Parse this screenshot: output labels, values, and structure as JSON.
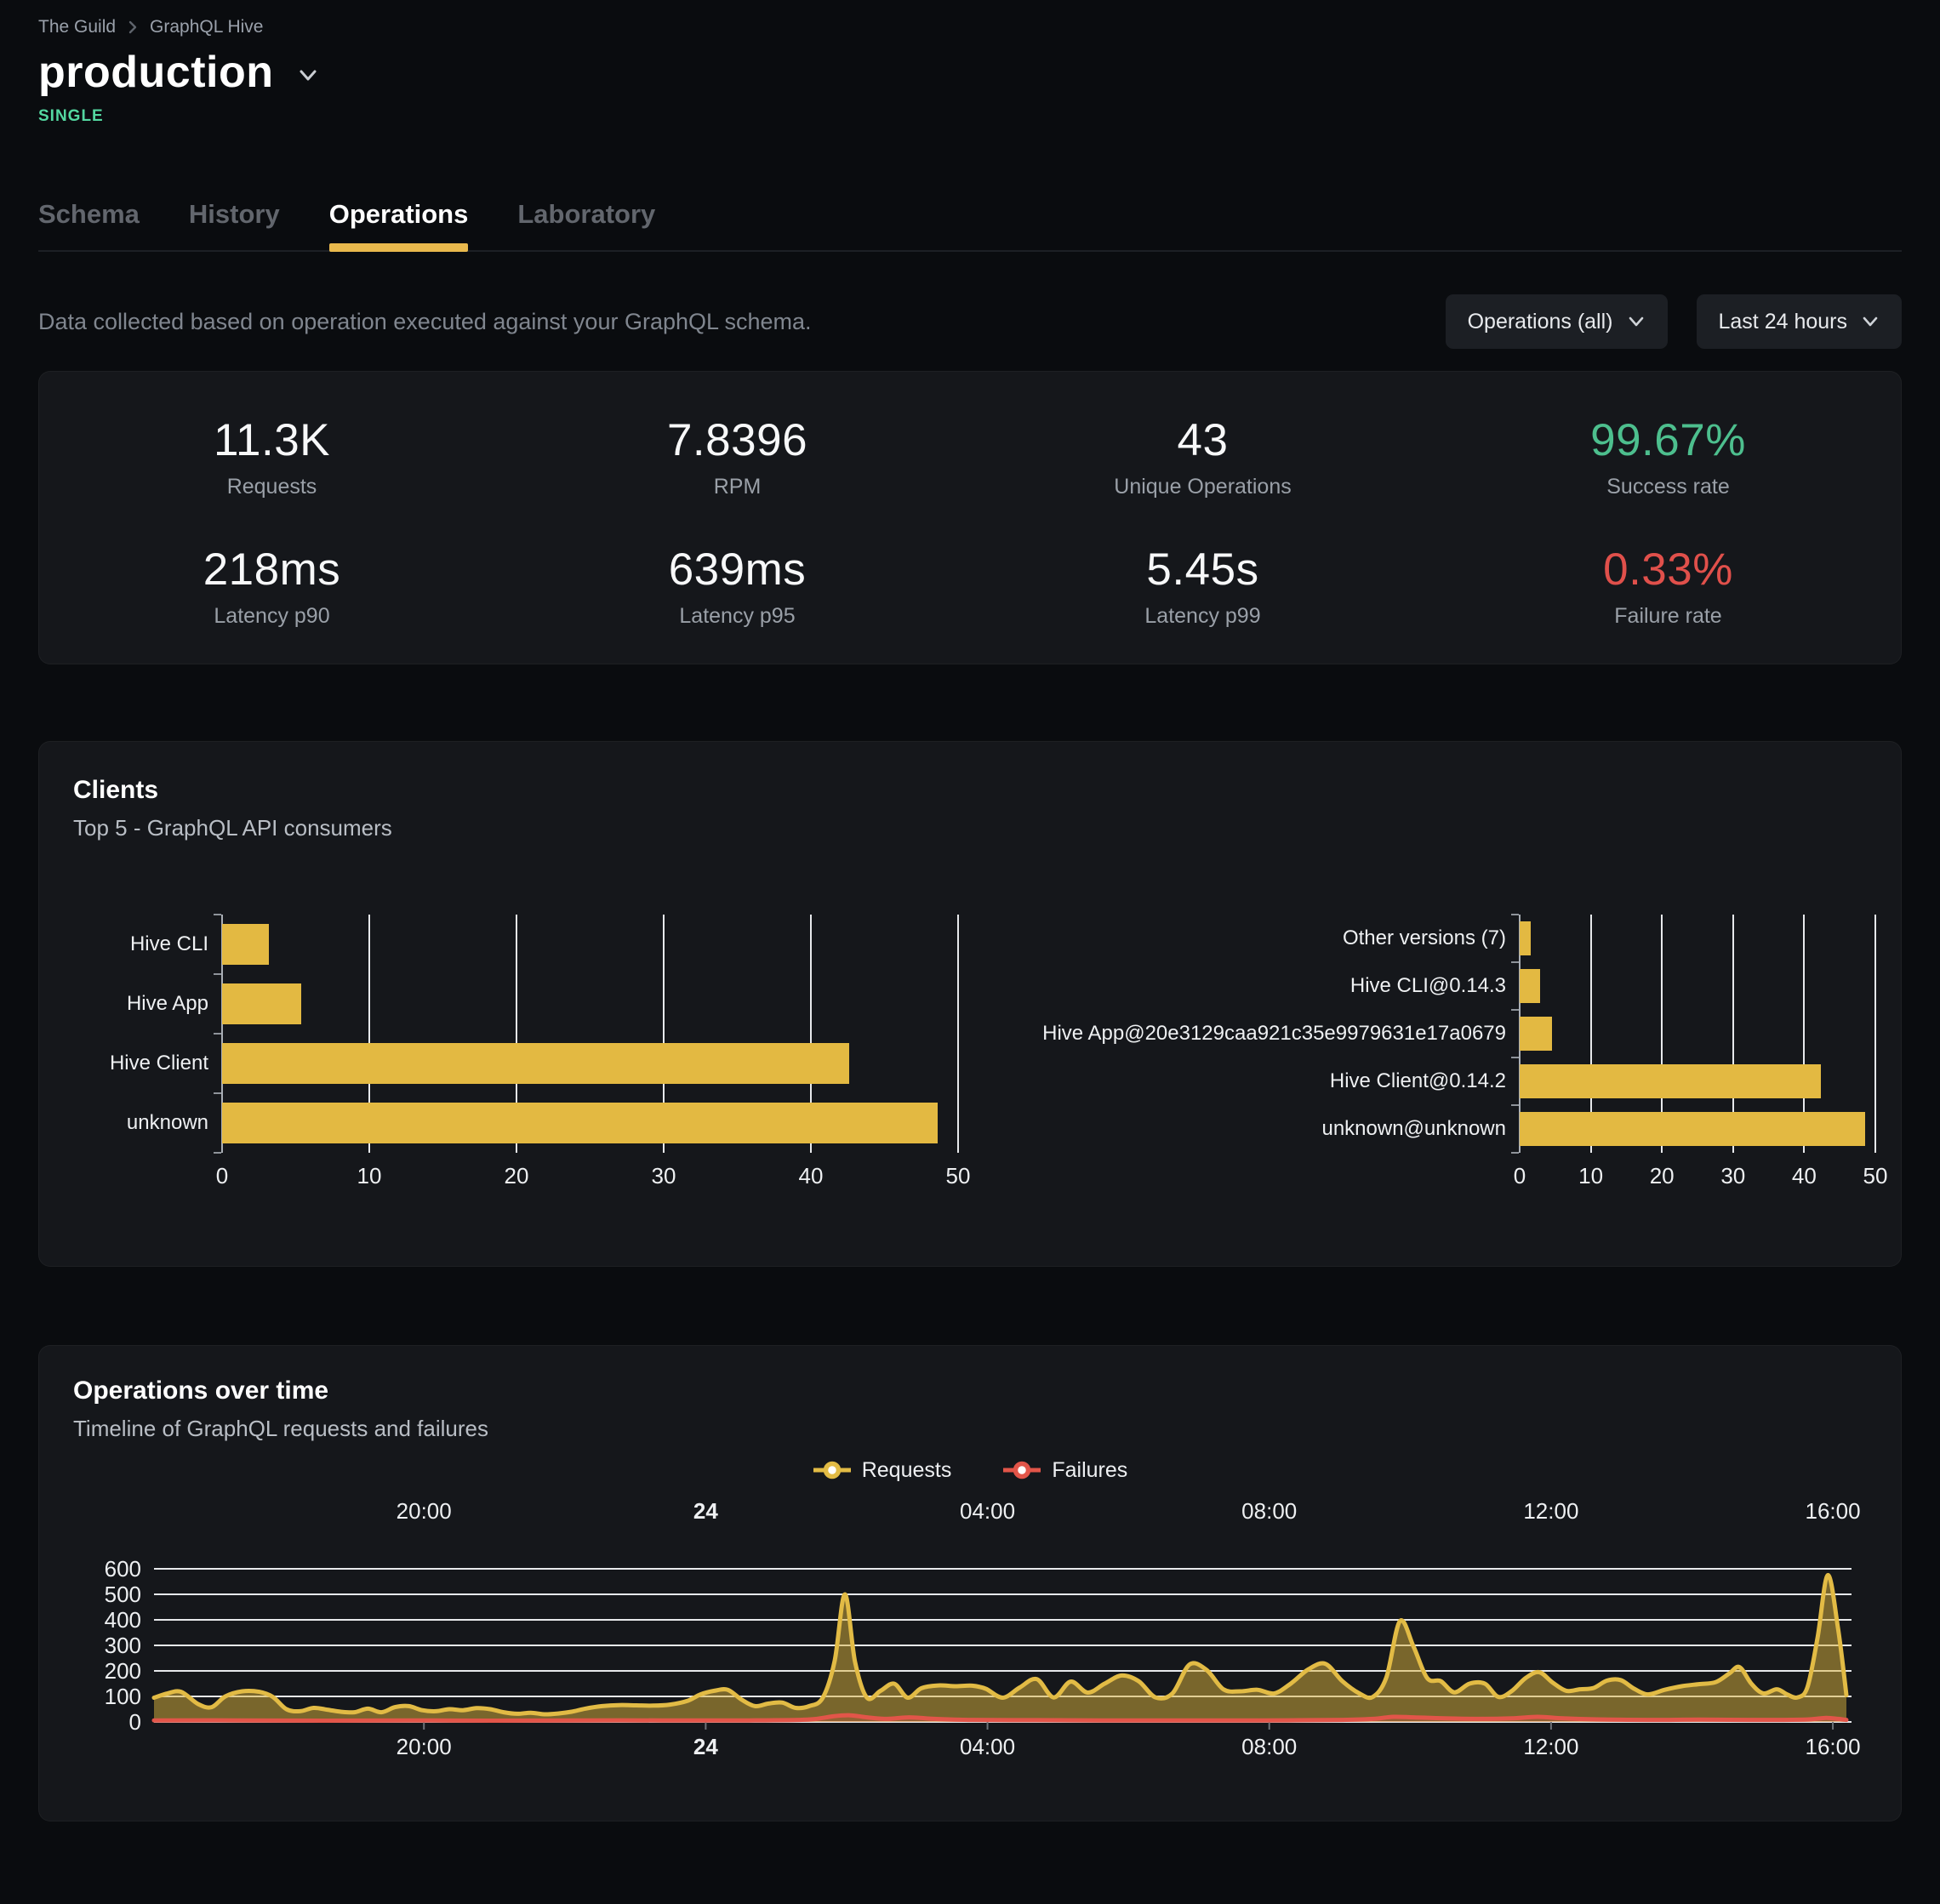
{
  "breadcrumb": {
    "items": [
      "The Guild",
      "GraphQL Hive"
    ]
  },
  "header": {
    "title": "production",
    "badge": "SINGLE"
  },
  "tabs": [
    {
      "label": "Schema"
    },
    {
      "label": "History"
    },
    {
      "label": "Operations"
    },
    {
      "label": "Laboratory"
    }
  ],
  "toolbar": {
    "description": "Data collected based on operation executed against your GraphQL schema.",
    "operations_filter": "Operations (all)",
    "time_range": "Last 24 hours"
  },
  "stats": [
    {
      "value": "11.3K",
      "label": "Requests"
    },
    {
      "value": "7.8396",
      "label": "RPM"
    },
    {
      "value": "43",
      "label": "Unique Operations"
    },
    {
      "value": "99.67%",
      "label": "Success rate",
      "color": "#4dbf8e"
    },
    {
      "value": "218ms",
      "label": "Latency p90"
    },
    {
      "value": "639ms",
      "label": "Latency p95"
    },
    {
      "value": "5.45s",
      "label": "Latency p99"
    },
    {
      "value": "0.33%",
      "label": "Failure rate",
      "color": "#e0504b"
    }
  ],
  "clients": {
    "title": "Clients",
    "subtitle": "Top 5 - GraphQL API consumers"
  },
  "timeline": {
    "title": "Operations over time",
    "subtitle": "Timeline of GraphQL requests and failures",
    "legend": [
      {
        "label": "Requests",
        "color": "#e2bb45"
      },
      {
        "label": "Failures",
        "color": "#e25549"
      }
    ]
  },
  "colors": {
    "bar_yellow": "#e3b942",
    "line_yellow": "#e2bb45",
    "area_yellow": "rgba(222,182,62,0.5)",
    "failure_red": "#e25549",
    "failure_fill": "rgba(226,85,73,0.25)",
    "success_green": "#4dbf8e",
    "badge_mint": "#54d8a1",
    "accent": "#e9b94d"
  },
  "chart_data": [
    {
      "type": "bar",
      "orientation": "horizontal",
      "title": "Clients by name",
      "categories": [
        "Hive CLI",
        "Hive App",
        "Hive Client",
        "unknown"
      ],
      "values": [
        3.2,
        5.4,
        42.6,
        48.6
      ],
      "xlim": [
        0,
        50
      ],
      "xticks": [
        0,
        10,
        20,
        30,
        40,
        50
      ],
      "grid": true,
      "bar_color": "#e3b942"
    },
    {
      "type": "bar",
      "orientation": "horizontal",
      "title": "Clients by version",
      "categories": [
        "Other versions (7)",
        "Hive CLI@0.14.3",
        "Hive App@20e3129caa921c35e9979631e17a0679",
        "Hive Client@0.14.2",
        "unknown@unknown"
      ],
      "values": [
        1.5,
        2.9,
        4.6,
        42.4,
        48.6
      ],
      "xlim": [
        0,
        50
      ],
      "xticks": [
        0,
        10,
        20,
        30,
        40,
        50
      ],
      "grid": true,
      "bar_color": "#e3b942"
    },
    {
      "type": "area",
      "title": "Operations over time",
      "ylim": [
        0,
        600
      ],
      "yticks": [
        0,
        100,
        200,
        300,
        400,
        500,
        600
      ],
      "grid": true,
      "legend_position": "top-center",
      "xticks": [
        {
          "label": "20:00",
          "f": 0.159,
          "bold": false
        },
        {
          "label": "24",
          "f": 0.325,
          "bold": true
        },
        {
          "label": "04:00",
          "f": 0.491,
          "bold": false
        },
        {
          "label": "08:00",
          "f": 0.657,
          "bold": false
        },
        {
          "label": "12:00",
          "f": 0.823,
          "bold": false
        },
        {
          "label": "16:00",
          "f": 0.989,
          "bold": false
        }
      ],
      "series": [
        {
          "name": "Requests",
          "color": "#e2bb45",
          "fill": "rgba(222,182,62,0.5)",
          "points": [
            [
              0.0,
              95
            ],
            [
              0.008,
              112
            ],
            [
              0.016,
              118
            ],
            [
              0.026,
              70
            ],
            [
              0.034,
              58
            ],
            [
              0.042,
              100
            ],
            [
              0.052,
              120
            ],
            [
              0.062,
              118
            ],
            [
              0.07,
              98
            ],
            [
              0.078,
              50
            ],
            [
              0.086,
              42
            ],
            [
              0.094,
              55
            ],
            [
              0.102,
              48
            ],
            [
              0.11,
              40
            ],
            [
              0.118,
              38
            ],
            [
              0.126,
              52
            ],
            [
              0.134,
              38
            ],
            [
              0.142,
              58
            ],
            [
              0.15,
              62
            ],
            [
              0.158,
              46
            ],
            [
              0.166,
              42
            ],
            [
              0.174,
              50
            ],
            [
              0.182,
              46
            ],
            [
              0.19,
              54
            ],
            [
              0.198,
              50
            ],
            [
              0.206,
              38
            ],
            [
              0.214,
              32
            ],
            [
              0.222,
              36
            ],
            [
              0.23,
              30
            ],
            [
              0.238,
              33
            ],
            [
              0.246,
              40
            ],
            [
              0.254,
              52
            ],
            [
              0.264,
              62
            ],
            [
              0.274,
              66
            ],
            [
              0.284,
              65
            ],
            [
              0.294,
              64
            ],
            [
              0.304,
              68
            ],
            [
              0.314,
              82
            ],
            [
              0.322,
              108
            ],
            [
              0.33,
              122
            ],
            [
              0.338,
              126
            ],
            [
              0.346,
              88
            ],
            [
              0.354,
              62
            ],
            [
              0.362,
              72
            ],
            [
              0.37,
              76
            ],
            [
              0.378,
              55
            ],
            [
              0.386,
              62
            ],
            [
              0.394,
              95
            ],
            [
              0.401,
              240
            ],
            [
              0.407,
              500
            ],
            [
              0.413,
              235
            ],
            [
              0.42,
              95
            ],
            [
              0.428,
              122
            ],
            [
              0.436,
              150
            ],
            [
              0.444,
              95
            ],
            [
              0.452,
              132
            ],
            [
              0.462,
              143
            ],
            [
              0.472,
              140
            ],
            [
              0.482,
              142
            ],
            [
              0.49,
              130
            ],
            [
              0.5,
              95
            ],
            [
              0.51,
              135
            ],
            [
              0.52,
              168
            ],
            [
              0.53,
              96
            ],
            [
              0.54,
              158
            ],
            [
              0.55,
              115
            ],
            [
              0.56,
              150
            ],
            [
              0.57,
              182
            ],
            [
              0.58,
              160
            ],
            [
              0.59,
              96
            ],
            [
              0.6,
              112
            ],
            [
              0.61,
              225
            ],
            [
              0.62,
              204
            ],
            [
              0.63,
              128
            ],
            [
              0.64,
              120
            ],
            [
              0.65,
              126
            ],
            [
              0.66,
              112
            ],
            [
              0.67,
              152
            ],
            [
              0.68,
              206
            ],
            [
              0.69,
              228
            ],
            [
              0.7,
              160
            ],
            [
              0.71,
              112
            ],
            [
              0.718,
              98
            ],
            [
              0.726,
              175
            ],
            [
              0.734,
              395
            ],
            [
              0.742,
              295
            ],
            [
              0.75,
              172
            ],
            [
              0.758,
              160
            ],
            [
              0.766,
              116
            ],
            [
              0.775,
              150
            ],
            [
              0.784,
              150
            ],
            [
              0.792,
              98
            ],
            [
              0.8,
              122
            ],
            [
              0.808,
              172
            ],
            [
              0.816,
              195
            ],
            [
              0.824,
              154
            ],
            [
              0.832,
              122
            ],
            [
              0.84,
              128
            ],
            [
              0.848,
              133
            ],
            [
              0.856,
              162
            ],
            [
              0.864,
              164
            ],
            [
              0.872,
              130
            ],
            [
              0.88,
              108
            ],
            [
              0.89,
              126
            ],
            [
              0.9,
              140
            ],
            [
              0.91,
              148
            ],
            [
              0.92,
              156
            ],
            [
              0.928,
              190
            ],
            [
              0.934,
              215
            ],
            [
              0.941,
              150
            ],
            [
              0.948,
              112
            ],
            [
              0.956,
              128
            ],
            [
              0.962,
              108
            ],
            [
              0.968,
              96
            ],
            [
              0.974,
              135
            ],
            [
              0.98,
              330
            ],
            [
              0.986,
              575
            ],
            [
              0.992,
              370
            ],
            [
              0.997,
              105
            ]
          ]
        },
        {
          "name": "Failures",
          "color": "#e25549",
          "fill": "rgba(226,85,73,0.25)",
          "points": [
            [
              0.0,
              6
            ],
            [
              0.05,
              6
            ],
            [
              0.1,
              5
            ],
            [
              0.15,
              6
            ],
            [
              0.2,
              5
            ],
            [
              0.25,
              6
            ],
            [
              0.3,
              6
            ],
            [
              0.35,
              6
            ],
            [
              0.385,
              9
            ],
            [
              0.4,
              22
            ],
            [
              0.41,
              26
            ],
            [
              0.42,
              18
            ],
            [
              0.432,
              12
            ],
            [
              0.445,
              18
            ],
            [
              0.46,
              12
            ],
            [
              0.48,
              8
            ],
            [
              0.52,
              7
            ],
            [
              0.56,
              6
            ],
            [
              0.6,
              6
            ],
            [
              0.65,
              6
            ],
            [
              0.7,
              8
            ],
            [
              0.718,
              12
            ],
            [
              0.73,
              20
            ],
            [
              0.742,
              18
            ],
            [
              0.76,
              14
            ],
            [
              0.78,
              12
            ],
            [
              0.8,
              14
            ],
            [
              0.815,
              20
            ],
            [
              0.83,
              14
            ],
            [
              0.85,
              10
            ],
            [
              0.88,
              8
            ],
            [
              0.91,
              9
            ],
            [
              0.94,
              8
            ],
            [
              0.96,
              8
            ],
            [
              0.975,
              10
            ],
            [
              0.985,
              16
            ],
            [
              0.992,
              12
            ],
            [
              0.997,
              8
            ]
          ]
        }
      ]
    }
  ]
}
